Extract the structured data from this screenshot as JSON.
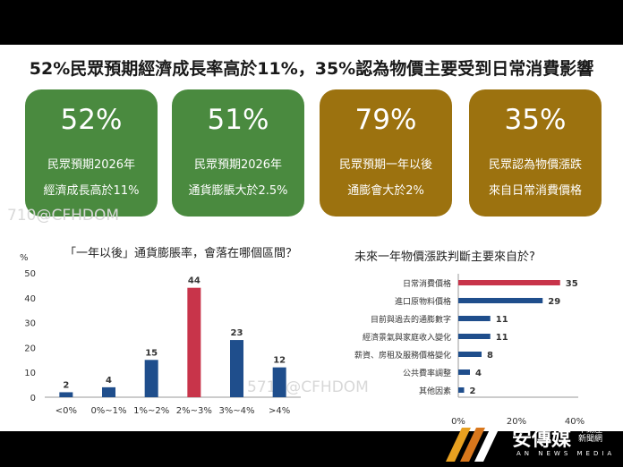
{
  "headline": "52%民眾預期經濟成長率高於11%，35%認為物價主要受到日常消費影響",
  "cards": [
    {
      "value": "52%",
      "line1": "民眾預期2026年",
      "line2": "經濟成長高於11%",
      "color": "#4a8a3f"
    },
    {
      "value": "51%",
      "line1": "民眾預期2026年",
      "line2": "通貨膨脹大於2.5%",
      "color": "#4a8a3f"
    },
    {
      "value": "79%",
      "line1": "民眾預期一年以後",
      "line2": "通膨會大於2%",
      "color": "#9c720f"
    },
    {
      "value": "35%",
      "line1": "民眾認為物價漲跌",
      "line2": "來自日常消費價格",
      "color": "#9c720f"
    }
  ],
  "chart_data": [
    {
      "type": "bar",
      "title": "「一年以後」通貨膨脹率，會落在哪個區間？",
      "ylabel": "%",
      "ylim": [
        0,
        50
      ],
      "yticks": [
        0,
        10,
        20,
        30,
        40,
        50
      ],
      "categories": [
        "<0%",
        "0%~1%",
        "1%~2%",
        "2%~3%",
        "3%~4%",
        ">4%"
      ],
      "values": [
        2,
        4,
        15,
        44,
        23,
        12
      ],
      "colors": [
        "#1f4e8c",
        "#1f4e8c",
        "#1f4e8c",
        "#c8344a",
        "#1f4e8c",
        "#1f4e8c"
      ],
      "grid": false
    },
    {
      "type": "bar",
      "orientation": "horizontal",
      "title": "未來一年物價漲跌判斷主要來自於?",
      "categories": [
        "日常消費價格",
        "進口原物料價格",
        "目前與過去的通膨數字",
        "經濟景氣與家庭收入變化",
        "薪資、房租及服務價格變化",
        "公共費率調整",
        "其他因素"
      ],
      "values": [
        35,
        29,
        11,
        11,
        8,
        4,
        2
      ],
      "colors": [
        "#c8344a",
        "#1f4e8c",
        "#1f4e8c",
        "#1f4e8c",
        "#1f4e8c",
        "#1f4e8c",
        "#1f4e8c"
      ],
      "xlim": [
        0,
        40
      ],
      "xticks": [
        0,
        20,
        40
      ],
      "xtick_labels": [
        "0%",
        "20%",
        "40%"
      ],
      "grid": false
    }
  ],
  "watermarks": [
    "710@CFHDOM",
    "5710@CFHDOM"
  ],
  "logo": {
    "text": "安傳媒",
    "subtitle": "AN NEWS MEDIA",
    "tag": "不動產新聞網"
  }
}
